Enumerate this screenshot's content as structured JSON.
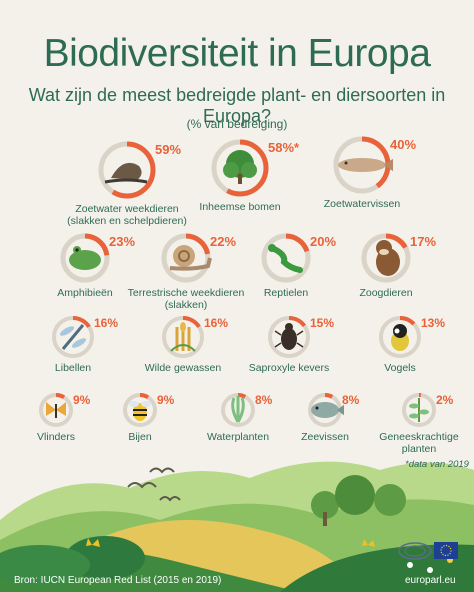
{
  "title": "Biodiversiteit in Europa",
  "subtitle": "Wat zijn de meest bedreigde plant- en diersoorten in Europa?",
  "note": "(% van bedreiging)",
  "date_note": "*data van 2019",
  "source": "Bron: IUCN European Red List (2015 en 2019)",
  "site": "europarl.eu",
  "colors": {
    "accent": "#e8623a",
    "ring_track": "#d9d3c8",
    "text": "#2e6b54",
    "background": "#f4f1ea"
  },
  "items": [
    {
      "pct_label": "59%",
      "value": 59,
      "label": "Zoetwater weekdieren",
      "label2": "(slakken en schelpdieren)",
      "icon": "snail-shell-icon"
    },
    {
      "pct_label": "58%*",
      "value": 58,
      "label": "Inheemse bomen",
      "label2": "",
      "icon": "tree-icon"
    },
    {
      "pct_label": "40%",
      "value": 40,
      "label": "Zoetwatervissen",
      "label2": "",
      "icon": "fish-icon"
    },
    {
      "pct_label": "23%",
      "value": 23,
      "label": "Amphibieën",
      "label2": "",
      "icon": "frog-icon"
    },
    {
      "pct_label": "22%",
      "value": 22,
      "label": "Terrestrische weekdieren",
      "label2": "(slakken)",
      "icon": "snail-icon"
    },
    {
      "pct_label": "20%",
      "value": 20,
      "label": "Reptielen",
      "label2": "",
      "icon": "lizard-icon"
    },
    {
      "pct_label": "17%",
      "value": 17,
      "label": "Zoogdieren",
      "label2": "",
      "icon": "otter-icon"
    },
    {
      "pct_label": "16%",
      "value": 16,
      "label": "Libellen",
      "label2": "",
      "icon": "dragonfly-icon"
    },
    {
      "pct_label": "16%",
      "value": 16,
      "label": "Wilde gewassen",
      "label2": "",
      "icon": "wheat-icon"
    },
    {
      "pct_label": "15%",
      "value": 15,
      "label": "Saproxyle kevers",
      "label2": "",
      "icon": "beetle-icon"
    },
    {
      "pct_label": "13%",
      "value": 13,
      "label": "Vogels",
      "label2": "",
      "icon": "bird-icon"
    },
    {
      "pct_label": "9%",
      "value": 9,
      "label": "Vlinders",
      "label2": "",
      "icon": "butterfly-icon"
    },
    {
      "pct_label": "9%",
      "value": 9,
      "label": "Bijen",
      "label2": "",
      "icon": "bee-icon"
    },
    {
      "pct_label": "8%",
      "value": 8,
      "label": "Waterplanten",
      "label2": "",
      "icon": "water-plant-icon"
    },
    {
      "pct_label": "8%",
      "value": 8,
      "label": "Zeevissen",
      "label2": "",
      "icon": "sea-fish-icon"
    },
    {
      "pct_label": "2%",
      "value": 2,
      "label": "Geneeskrachtige",
      "label2": "planten",
      "icon": "herb-icon"
    }
  ]
}
